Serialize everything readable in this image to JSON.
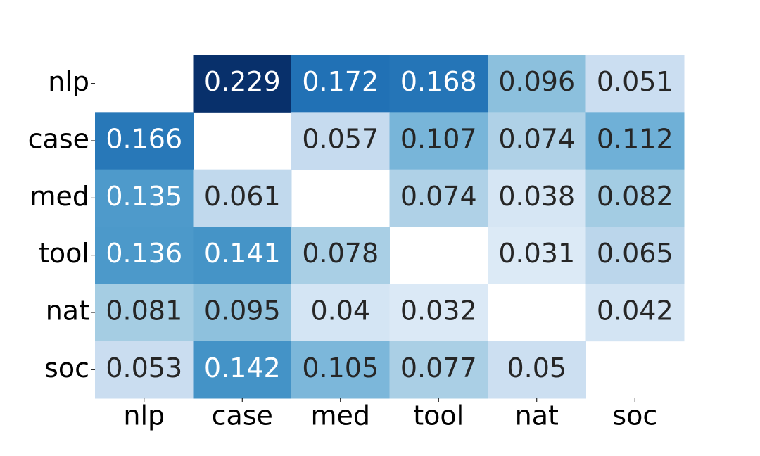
{
  "chart_data": {
    "type": "heatmap",
    "colormap": "Blues",
    "x_categories": [
      "nlp",
      "case",
      "med",
      "tool",
      "nat",
      "soc"
    ],
    "y_categories": [
      "nlp",
      "case",
      "med",
      "tool",
      "nat",
      "soc"
    ],
    "values": [
      [
        null,
        0.229,
        0.172,
        0.168,
        0.096,
        0.051
      ],
      [
        0.166,
        null,
        0.057,
        0.107,
        0.074,
        0.112
      ],
      [
        0.135,
        0.061,
        null,
        0.074,
        0.038,
        0.082
      ],
      [
        0.136,
        0.141,
        0.078,
        null,
        0.031,
        0.065
      ],
      [
        0.081,
        0.095,
        0.04,
        0.032,
        null,
        0.042
      ],
      [
        0.053,
        0.142,
        0.105,
        0.077,
        0.05,
        null
      ]
    ]
  }
}
